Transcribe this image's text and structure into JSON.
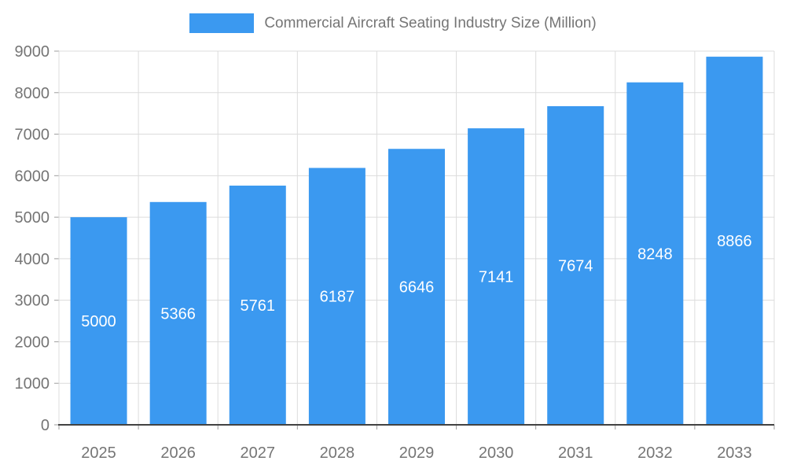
{
  "legend": {
    "label": "Commercial Aircraft Seating Industry Size (Million)"
  },
  "chart_data": {
    "type": "bar",
    "title": "Commercial Aircraft Seating Industry Size (Million)",
    "categories": [
      "2025",
      "2026",
      "2027",
      "2028",
      "2029",
      "2030",
      "2031",
      "2032",
      "2033"
    ],
    "values": [
      5000,
      5366,
      5761,
      6187,
      6646,
      7141,
      7674,
      8248,
      8866
    ],
    "xlabel": "",
    "ylabel": "",
    "ylim": [
      0,
      9000
    ],
    "ytick_step": 1000,
    "grid": true,
    "legend_position": "top-center",
    "bar_color": "#3b99f0",
    "bar_label_color": "#ffffff",
    "axis_text_color": "#757575",
    "grid_color": "#dcdcdc",
    "axis_line_color": "#424242",
    "tick_color": "#9e9e9e",
    "background": "#ffffff"
  }
}
